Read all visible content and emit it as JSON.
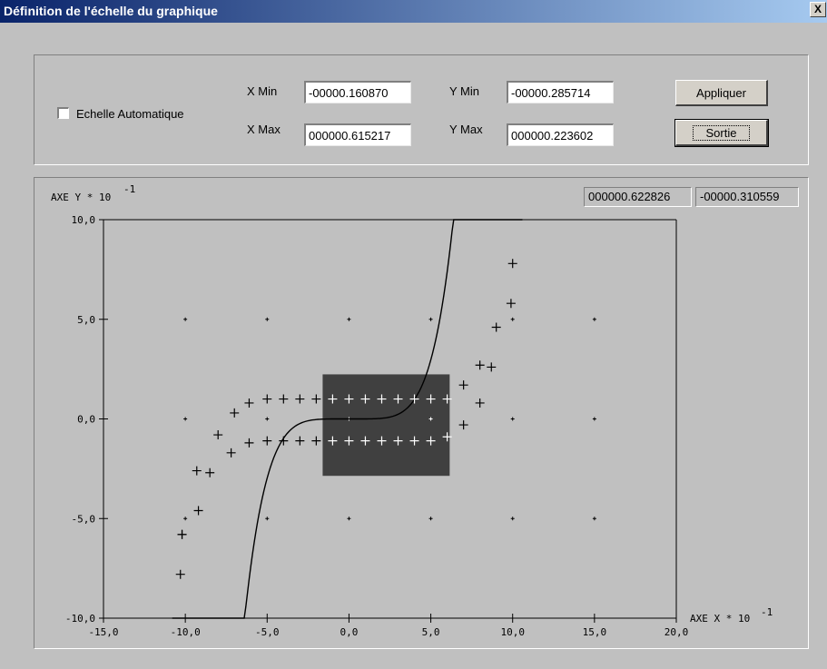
{
  "window": {
    "title": "Définition de l'échelle du graphique",
    "close_label": "X"
  },
  "controls": {
    "auto_scale_label": "Echelle Automatique",
    "auto_scale_checked": false,
    "xmin_label": "X Min",
    "xmin_value": "-00000.160870",
    "xmax_label": "X Max",
    "xmax_value": "000000.615217",
    "ymin_label": "Y Min",
    "ymin_value": "-00000.285714",
    "ymax_label": "Y Max",
    "ymax_value": "000000.223602",
    "apply_label": "Appliquer",
    "exit_label": "Sortie"
  },
  "cursor_readout": {
    "x": "000000.622826",
    "y": "-00000.310559"
  },
  "chart_data": {
    "type": "scatter",
    "ylabel_prefix": "AXE Y * 10",
    "ylabel_exp": "-1",
    "xlabel_prefix": "AXE X * 10",
    "xlabel_exp": "-1",
    "xlim": [
      -15,
      20
    ],
    "ylim": [
      -10,
      10
    ],
    "xticks": [
      "-15,0",
      "-10,0",
      "-5,0",
      "0,0",
      "5,0",
      "10,0",
      "15,0",
      "20,0"
    ],
    "yticks": [
      "10,0",
      "5,0",
      "0,0",
      "-5,0",
      "-10,0"
    ],
    "selection": {
      "xmin": -1.6087,
      "xmax": 6.15217,
      "ymin": -2.85714,
      "ymax": 2.23602
    },
    "curve": "cubic",
    "grid_dots": [
      [
        -10,
        5
      ],
      [
        -5,
        5
      ],
      [
        0,
        5
      ],
      [
        5,
        5
      ],
      [
        10,
        5
      ],
      [
        15,
        5
      ],
      [
        -10,
        0
      ],
      [
        -5,
        0
      ],
      [
        0,
        0
      ],
      [
        5,
        0
      ],
      [
        10,
        0
      ],
      [
        15,
        0
      ],
      [
        -10,
        -5
      ],
      [
        -5,
        -5
      ],
      [
        0,
        -5
      ],
      [
        5,
        -5
      ],
      [
        10,
        -5
      ],
      [
        15,
        -5
      ]
    ],
    "upper_points": [
      [
        -10.3,
        -7.8
      ],
      [
        -10.2,
        -5.8
      ],
      [
        -9.2,
        -4.6
      ],
      [
        -9.3,
        -2.6
      ],
      [
        -8.0,
        -0.8
      ],
      [
        -7.0,
        0.3
      ],
      [
        -6.1,
        0.8
      ],
      [
        -5.0,
        1.0
      ],
      [
        -4.0,
        1.0
      ],
      [
        -3.0,
        1.0
      ],
      [
        -2.0,
        1.0
      ],
      [
        -1.0,
        1.0
      ],
      [
        0,
        1.0
      ],
      [
        1,
        1.0
      ],
      [
        2,
        1.0
      ],
      [
        3,
        1.0
      ],
      [
        4,
        1.0
      ],
      [
        5,
        1.0
      ],
      [
        6,
        1.0
      ],
      [
        7,
        1.7
      ],
      [
        8,
        2.7
      ],
      [
        9,
        4.6
      ],
      [
        9.9,
        5.8
      ],
      [
        10,
        7.8
      ]
    ],
    "lower_points": [
      [
        -10.2,
        -5.8
      ],
      [
        -8.5,
        -2.7
      ],
      [
        -7.2,
        -1.7
      ],
      [
        -6.1,
        -1.2
      ],
      [
        -5.0,
        -1.1
      ],
      [
        -4.0,
        -1.1
      ],
      [
        -3.0,
        -1.1
      ],
      [
        -2.0,
        -1.1
      ],
      [
        -1.0,
        -1.1
      ],
      [
        0,
        -1.1
      ],
      [
        1,
        -1.1
      ],
      [
        2,
        -1.1
      ],
      [
        3,
        -1.1
      ],
      [
        4,
        -1.1
      ],
      [
        5,
        -1.1
      ],
      [
        6,
        -0.9
      ],
      [
        7,
        -0.3
      ],
      [
        8,
        0.8
      ],
      [
        8.7,
        2.6
      ]
    ]
  }
}
